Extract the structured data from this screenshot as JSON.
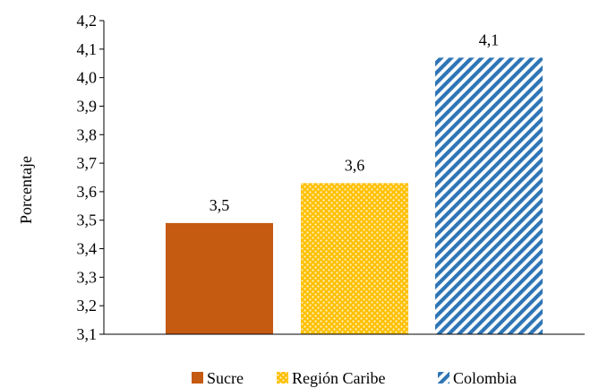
{
  "chart_data": {
    "type": "bar",
    "ylabel": "Porcentaje",
    "ylim": [
      3.1,
      4.2
    ],
    "y_ticks": [
      "3,1",
      "3,2",
      "3,3",
      "3,4",
      "3,5",
      "3,6",
      "3,7",
      "3,8",
      "3,9",
      "4,0",
      "4,1",
      "4,2"
    ],
    "grid": false,
    "legend_position": "bottom",
    "categories": [
      "Sucre",
      "Región Caribe",
      "Colombia"
    ],
    "values": [
      3.49,
      3.63,
      4.07
    ],
    "data_labels": [
      "3,5",
      "3,6",
      "4,1"
    ],
    "colors": [
      "#c55a11",
      "#ffc000",
      "#2e75b6"
    ],
    "fills": [
      "solid",
      "dots",
      "diagonal-stripes"
    ]
  }
}
